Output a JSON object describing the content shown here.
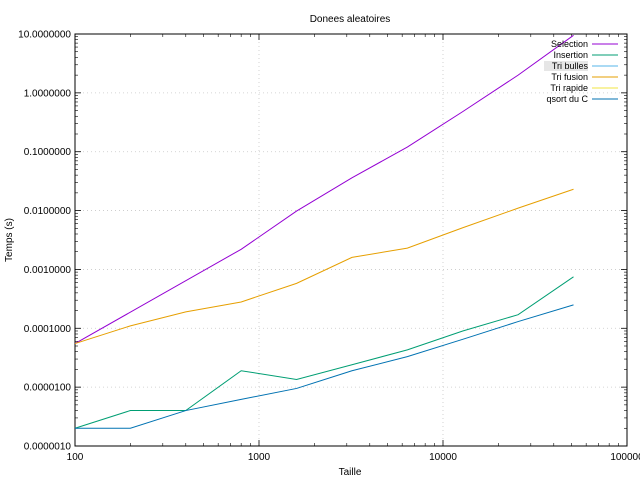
{
  "chart_data": {
    "type": "line",
    "title": "Donees aleatoires",
    "xlabel": "Taille",
    "ylabel": "Temps (s)",
    "x_scale": "log",
    "y_scale": "log",
    "xlim": [
      100,
      100000
    ],
    "ylim": [
      1e-06,
      10
    ],
    "grid": true,
    "legend_position": "top-right",
    "x_ticks": [
      {
        "value": 100,
        "label": "100"
      },
      {
        "value": 1000,
        "label": "1000"
      },
      {
        "value": 10000,
        "label": "10000"
      },
      {
        "value": 100000,
        "label": "100000"
      }
    ],
    "y_ticks": [
      {
        "value": 1e-06,
        "label": "0.0000010"
      },
      {
        "value": 1e-05,
        "label": "0.0000100"
      },
      {
        "value": 0.0001,
        "label": "0.0001000"
      },
      {
        "value": 0.001,
        "label": "0.0010000"
      },
      {
        "value": 0.01,
        "label": "0.0100000"
      },
      {
        "value": 0.1,
        "label": "0.1000000"
      },
      {
        "value": 1,
        "label": "1.0000000"
      },
      {
        "value": 10,
        "label": "10.0000000"
      }
    ],
    "series": [
      {
        "name": "Selection",
        "color": "#9400d3",
        "x": [
          100,
          800,
          1600,
          3200,
          6400,
          12800,
          25600,
          51200
        ],
        "y": [
          5.5e-05,
          0.0022,
          0.0098,
          0.036,
          0.12,
          0.48,
          2.0,
          9.5
        ]
      },
      {
        "name": "Insertion",
        "color": "#009e73",
        "x": [
          100,
          200,
          400,
          800,
          1600,
          3200,
          6400,
          12800,
          25600,
          51200
        ],
        "y": [
          2e-06,
          4e-06,
          4e-06,
          1.9e-05,
          1.35e-05,
          2.4e-05,
          4.3e-05,
          9e-05,
          0.00017,
          0.00075
        ]
      },
      {
        "name": "Tri bulles",
        "color": "#56b4e9",
        "x": [],
        "y": []
      },
      {
        "name": "Tri fusion",
        "color": "#e69f00",
        "x": [
          100,
          200,
          400,
          800,
          1600,
          3200,
          6400,
          12800,
          25600,
          51200
        ],
        "y": [
          5.5e-05,
          0.00011,
          0.00019,
          0.00028,
          0.00058,
          0.0016,
          0.0023,
          0.0051,
          0.011,
          0.023
        ]
      },
      {
        "name": "Tri rapide",
        "color": "#f0e442",
        "x": [],
        "y": []
      },
      {
        "name": "qsort du C",
        "color": "#0072b2",
        "x": [
          100,
          200,
          400,
          800,
          1600,
          3200,
          6400,
          12800,
          25600,
          51200
        ],
        "y": [
          2e-06,
          2e-06,
          4e-06,
          6.2e-06,
          9.5e-06,
          1.9e-05,
          3.3e-05,
          6.5e-05,
          0.00013,
          0.00025
        ]
      }
    ]
  }
}
